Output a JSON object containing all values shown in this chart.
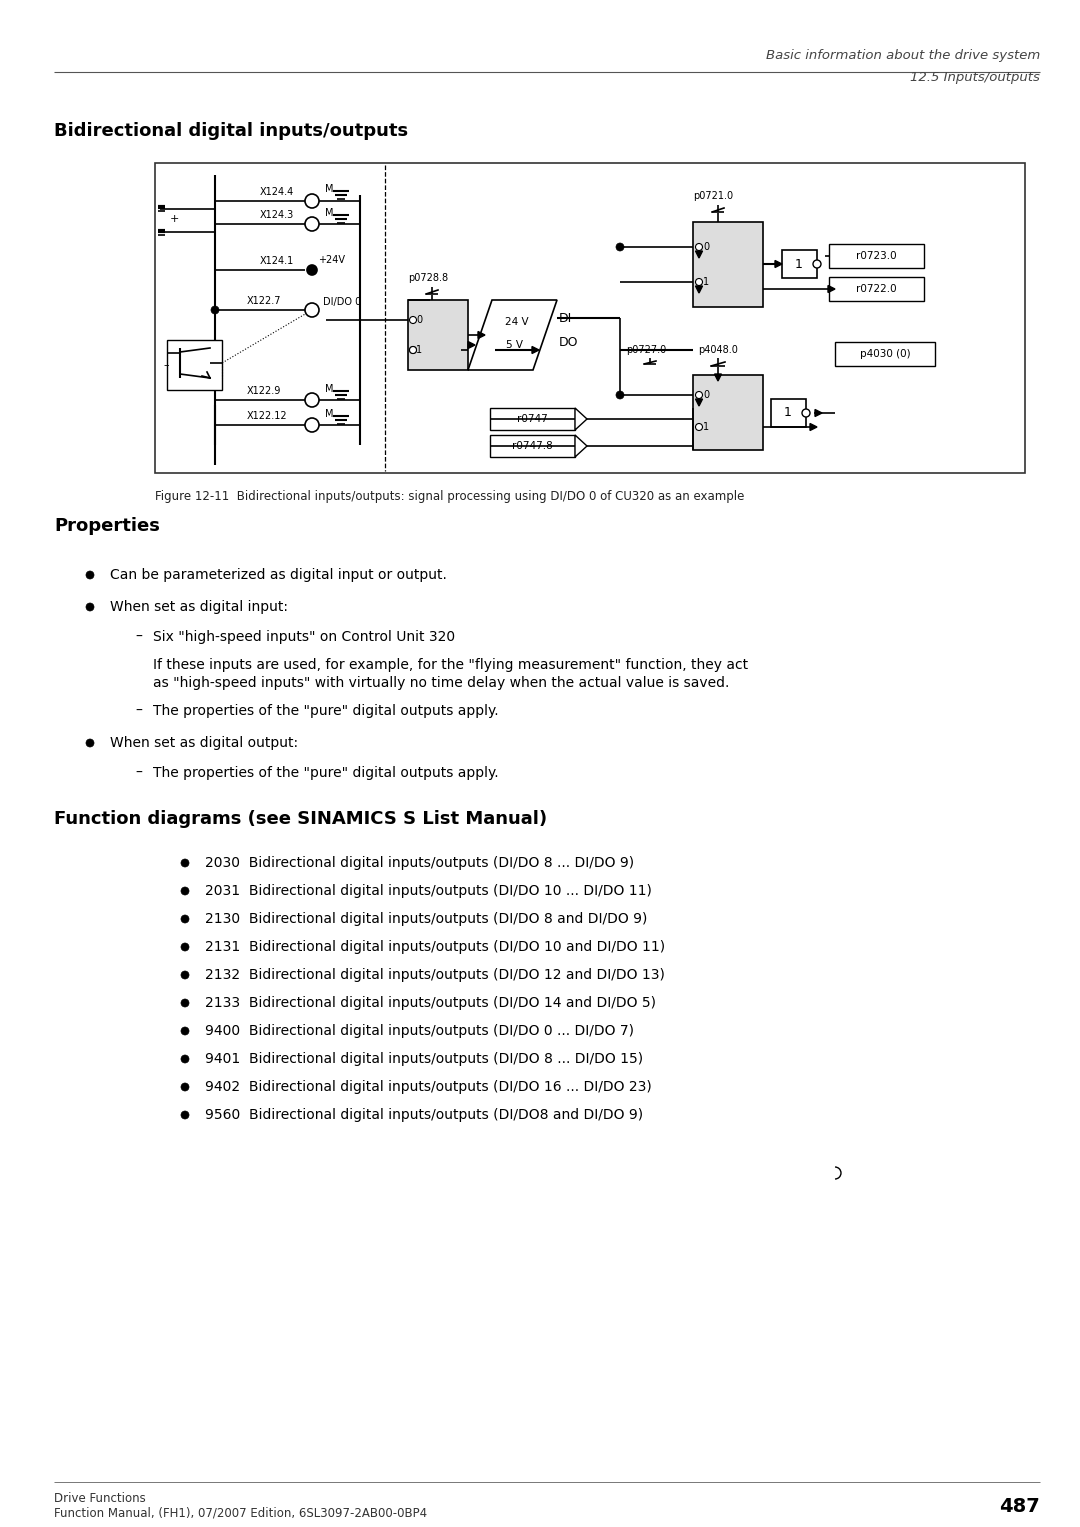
{
  "page_title_line1": "Basic information about the drive system",
  "page_title_line2": "12.5 Inputs/outputs",
  "section_title": "Bidirectional digital inputs/outputs",
  "figure_caption": "Figure 12-11  Bidirectional inputs/outputs: signal processing using DI/DO 0 of CU320 as an example",
  "properties_title": "Properties",
  "properties_bullets": [
    "Can be parameterized as digital input or output.",
    "When set as digital input:",
    "When set as digital output:"
  ],
  "sub_bullet_input_1": "Six \"high-speed inputs\" on Control Unit 320",
  "sub_bullet_input_1b_line1": "If these inputs are used, for example, for the \"flying measurement\" function, they act",
  "sub_bullet_input_1b_line2": "as \"high-speed inputs\" with virtually no time delay when the actual value is saved.",
  "sub_bullet_input_2": "The properties of the \"pure\" digital outputs apply.",
  "sub_bullet_output_1": "The properties of the \"pure\" digital outputs apply.",
  "function_diagrams_title": "Function diagrams (see SINAMICS S List Manual)",
  "function_diagrams_bullets": [
    "2030  Bidirectional digital inputs/outputs (DI/DO 8 ... DI/DO 9)",
    "2031  Bidirectional digital inputs/outputs (DI/DO 10 ... DI/DO 11)",
    "2130  Bidirectional digital inputs/outputs (DI/DO 8 and DI/DO 9)",
    "2131  Bidirectional digital inputs/outputs (DI/DO 10 and DI/DO 11)",
    "2132  Bidirectional digital inputs/outputs (DI/DO 12 and DI/DO 13)",
    "2133  Bidirectional digital inputs/outputs (DI/DO 14 and DI/DO 5)",
    "9400  Bidirectional digital inputs/outputs (DI/DO 0 ... DI/DO 7)",
    "9401  Bidirectional digital inputs/outputs (DI/DO 8 ... DI/DO 15)",
    "9402  Bidirectional digital inputs/outputs (DI/DO 16 ... DI/DO 23)",
    "9560  Bidirectional digital inputs/outputs (DI/DO8 and DI/DO 9)"
  ],
  "footer_line1": "Drive Functions",
  "footer_line2": "Function Manual, (FH1), 07/2007 Edition, 6SL3097-2AB00-0BP4",
  "footer_page": "487"
}
